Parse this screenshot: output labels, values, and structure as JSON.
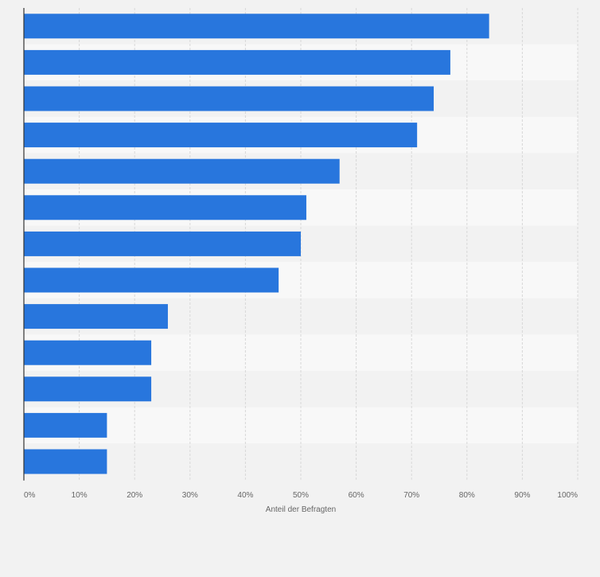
{
  "colors": {
    "background": "#f2f2f2",
    "band_light": "#f8f8f8",
    "band_dark": "#f2f2f2",
    "bar": "#2876dd",
    "grid": "#d8d8d8",
    "axis": "#333333",
    "tick_text": "#666666"
  },
  "chart_data": {
    "type": "bar",
    "orientation": "horizontal",
    "title": "",
    "categories": [
      "",
      "",
      "",
      "",
      "",
      "",
      "",
      "",
      "",
      "",
      "",
      "",
      ""
    ],
    "values": [
      84,
      77,
      74,
      71,
      57,
      51,
      50,
      46,
      26,
      23,
      23,
      15,
      15
    ],
    "xlabel": "Anteil der Befragten",
    "ylabel": "",
    "xlim": [
      0,
      100
    ],
    "xticks": [
      0,
      10,
      20,
      30,
      40,
      50,
      60,
      70,
      80,
      90,
      100
    ],
    "tick_labels": [
      "0%",
      "10%",
      "20%",
      "30%",
      "40%",
      "50%",
      "60%",
      "70%",
      "80%",
      "90%",
      "100%"
    ],
    "grid": true,
    "legend": "none"
  }
}
